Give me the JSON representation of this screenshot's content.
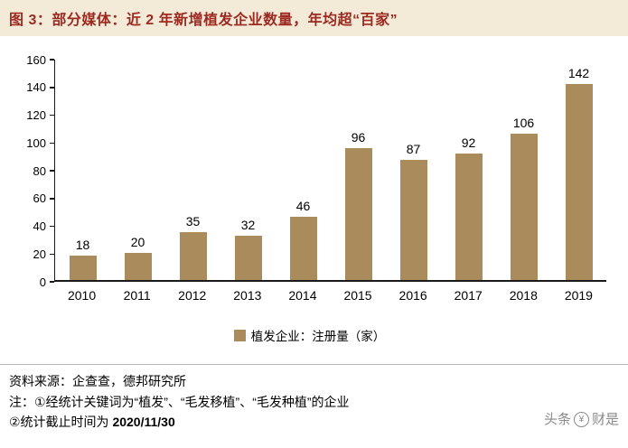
{
  "title": "图 3：部分媒体：近 2 年新增植发企业数量，年均超“百家”",
  "colors": {
    "title_bg": "#F3EAD8",
    "title_text": "#9C2A21",
    "bar": "#A98B5C"
  },
  "chart_data": {
    "type": "bar",
    "categories": [
      "2010",
      "2011",
      "2012",
      "2013",
      "2014",
      "2015",
      "2016",
      "2017",
      "2018",
      "2019"
    ],
    "values": [
      18,
      20,
      35,
      32,
      46,
      96,
      87,
      92,
      106,
      142
    ],
    "title": "部分媒体：近 2 年新增植发企业数量，年均超“百家”",
    "xlabel": "",
    "ylabel": "",
    "ylim": [
      0,
      160
    ],
    "ytick_step": 20,
    "grid": "off",
    "legend_position": "bottom",
    "legend": "植发企业：注册量（家）",
    "bar_color": "#A98B5C"
  },
  "footer": {
    "source": "资料来源：企查查，德邦研究所",
    "note1": "注：①经统计关键词为“植发”、“毛发移植”、“毛发种植”的企业",
    "note2_prefix": "②统计截止时间为 ",
    "note2_date": "2020/11/30"
  },
  "watermark": {
    "prefix": "头条",
    "handle": "财是",
    "logo_glyph": "¥"
  }
}
